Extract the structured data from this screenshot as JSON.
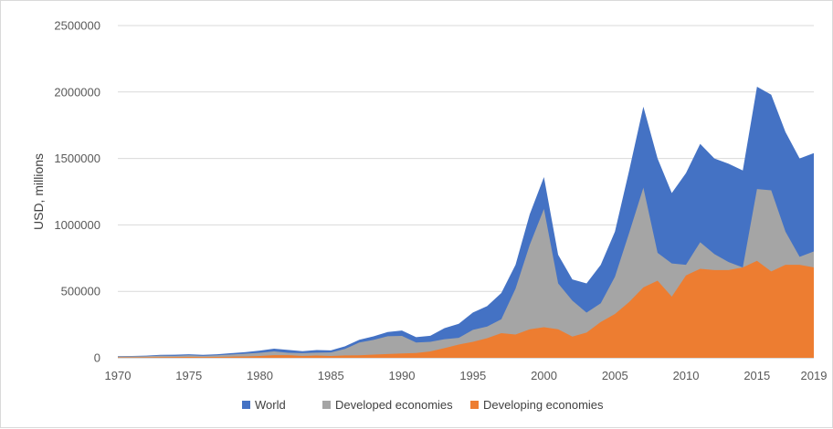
{
  "chart_data": {
    "type": "area",
    "title": "",
    "xlabel": "",
    "ylabel": "USD, millions",
    "ylim": [
      0,
      2500000
    ],
    "yticks": [
      0,
      500000,
      1000000,
      1500000,
      2000000,
      2500000
    ],
    "ytick_labels": [
      "0",
      "500000",
      "1000000",
      "1500000",
      "2000000",
      "2500000"
    ],
    "xlim": [
      1970,
      2019
    ],
    "xticks": [
      1970,
      1975,
      1980,
      1985,
      1990,
      1995,
      2000,
      2005,
      2010,
      2015,
      2019
    ],
    "xtick_labels": [
      "1970",
      "1975",
      "1980",
      "1985",
      "1990",
      "1995",
      "2000",
      "2005",
      "2010",
      "2015",
      "2019"
    ],
    "grid": "horizontal",
    "legend_position": "bottom",
    "overlapping": true,
    "x": [
      1970,
      1971,
      1972,
      1973,
      1974,
      1975,
      1976,
      1977,
      1978,
      1979,
      1980,
      1981,
      1982,
      1983,
      1984,
      1985,
      1986,
      1987,
      1988,
      1989,
      1990,
      1991,
      1992,
      1993,
      1994,
      1995,
      1996,
      1997,
      1998,
      1999,
      2000,
      2001,
      2002,
      2003,
      2004,
      2005,
      2006,
      2007,
      2008,
      2009,
      2010,
      2011,
      2012,
      2013,
      2014,
      2015,
      2016,
      2017,
      2018,
      2019
    ],
    "series": [
      {
        "name": "World",
        "color": "#4472c4",
        "values": [
          13000,
          14000,
          16000,
          22000,
          23000,
          27000,
          22000,
          27000,
          35000,
          43000,
          54000,
          69000,
          59000,
          50000,
          58000,
          56000,
          87000,
          136000,
          161000,
          194000,
          205000,
          155000,
          166000,
          223000,
          256000,
          341000,
          389000,
          488000,
          700000,
          1080000,
          1360000,
          775000,
          590000,
          560000,
          700000,
          950000,
          1410000,
          1890000,
          1500000,
          1240000,
          1390000,
          1610000,
          1500000,
          1460000,
          1410000,
          2040000,
          1980000,
          1700000,
          1500000,
          1540000
        ]
      },
      {
        "name": "Developed economies",
        "color": "#a5a5a5",
        "values": [
          10000,
          11000,
          12000,
          16000,
          15000,
          19000,
          15000,
          19000,
          25000,
          31000,
          38000,
          48000,
          38000,
          35000,
          39000,
          40000,
          67000,
          115000,
          135000,
          162000,
          165000,
          115000,
          120000,
          140000,
          150000,
          210000,
          235000,
          290000,
          520000,
          850000,
          1120000,
          560000,
          430000,
          340000,
          410000,
          610000,
          940000,
          1280000,
          790000,
          710000,
          700000,
          870000,
          780000,
          720000,
          680000,
          1270000,
          1260000,
          950000,
          760000,
          800000
        ]
      },
      {
        "name": "Developing economies",
        "color": "#ed7d31",
        "values": [
          3000,
          3000,
          4000,
          5000,
          6000,
          7000,
          6000,
          7000,
          9000,
          10000,
          14000,
          20000,
          20000,
          14000,
          17000,
          14000,
          18000,
          19000,
          24000,
          28000,
          33000,
          36000,
          48000,
          73000,
          100000,
          120000,
          148000,
          185000,
          175000,
          215000,
          230000,
          215000,
          160000,
          190000,
          270000,
          330000,
          420000,
          530000,
          580000,
          460000,
          620000,
          670000,
          660000,
          660000,
          680000,
          730000,
          650000,
          700000,
          700000,
          680000
        ]
      }
    ]
  }
}
